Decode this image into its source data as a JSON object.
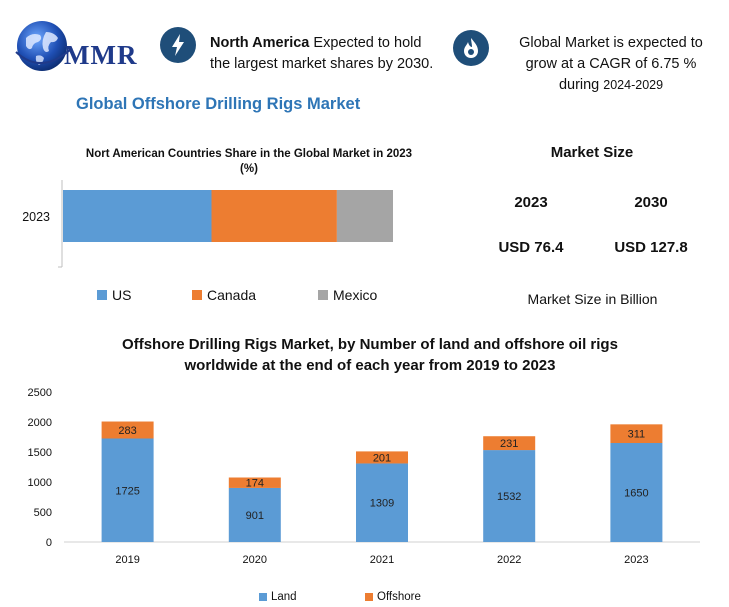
{
  "logo": {
    "text": "MMR"
  },
  "header": {
    "item1": {
      "icon": "lightning-icon",
      "bold": "North America",
      "line1_rest": " Expected to hold",
      "line2": "the largest market shares by 2030."
    },
    "item2": {
      "icon": "flame-icon",
      "line1": "Global Market is expected to",
      "line2": "grow at a CAGR of 6.75 %",
      "line3_main": "during ",
      "line3_small": "2024-2029"
    }
  },
  "main_title": "Global Offshore Drilling Rigs Market",
  "market_size": {
    "title": "Market Size",
    "year1": "2023",
    "year2": "2030",
    "value1": "USD 76.4",
    "value2": "USD 127.8",
    "footnote": "Market Size in Billion"
  },
  "colors": {
    "us": "#5b9bd5",
    "canada": "#ed7d31",
    "mexico": "#a5a5a5",
    "land": "#5b9bd5",
    "offshore": "#ed7d31",
    "title_blue": "#2e75b6",
    "icon_bg": "#1f4e79"
  },
  "chart_data": [
    {
      "type": "bar",
      "orientation": "horizontal-stacked",
      "title": "Nort American Countries Share in the Global Market in 2023",
      "subtitle": "(%)",
      "categories": [
        "2023"
      ],
      "series": [
        {
          "name": "US",
          "values": [
            45
          ]
        },
        {
          "name": "Canada",
          "values": [
            38
          ]
        },
        {
          "name": "Mexico",
          "values": [
            17
          ]
        }
      ],
      "xlim": [
        0,
        100
      ],
      "grid": false,
      "legend": "bottom"
    },
    {
      "type": "bar",
      "orientation": "vertical-stacked",
      "title_line1": "Offshore Drilling Rigs Market, by Number of land and offshore oil rigs",
      "title_line2": "worldwide at the end of each year from 2019 to 2023",
      "categories": [
        "2019",
        "2020",
        "2021",
        "2022",
        "2023"
      ],
      "series": [
        {
          "name": "Land",
          "values": [
            1725,
            901,
            1309,
            1532,
            1650
          ]
        },
        {
          "name": "Offshore",
          "values": [
            283,
            174,
            201,
            231,
            311
          ]
        }
      ],
      "y_ticks": [
        "0",
        "500",
        "1000",
        "1500",
        "2000",
        "2500"
      ],
      "ylim": [
        0,
        2500
      ],
      "grid": false,
      "legend": "bottom"
    }
  ]
}
